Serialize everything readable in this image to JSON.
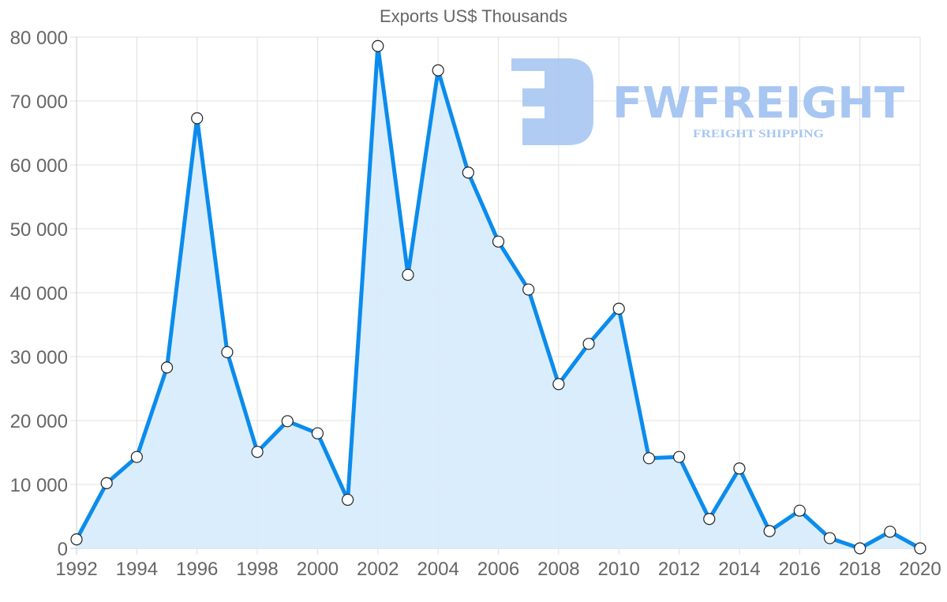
{
  "chart_data": {
    "type": "area",
    "title": "Exports US$ Thousands",
    "xlabel": "",
    "ylabel": "",
    "x": [
      1992,
      1993,
      1994,
      1995,
      1996,
      1997,
      1998,
      1999,
      2000,
      2001,
      2002,
      2003,
      2004,
      2005,
      2006,
      2007,
      2008,
      2009,
      2010,
      2011,
      2012,
      2013,
      2014,
      2015,
      2016,
      2017,
      2018,
      2019,
      2020
    ],
    "series": [
      {
        "name": "Exports US$ Thousands",
        "values": [
          1400,
          10200,
          14300,
          28300,
          67300,
          30700,
          15100,
          19900,
          18000,
          7600,
          78600,
          42800,
          74800,
          58800,
          48000,
          40500,
          25700,
          32000,
          37500,
          14100,
          14300,
          4600,
          12500,
          2700,
          5900,
          1600,
          0,
          2600,
          0
        ]
      }
    ],
    "x_tick_labels": [
      "1992",
      "1994",
      "1996",
      "1998",
      "2000",
      "2002",
      "2004",
      "2006",
      "2008",
      "2010",
      "2012",
      "2014",
      "2016",
      "2018",
      "2020"
    ],
    "y_tick_labels": [
      "0",
      "10 000",
      "20 000",
      "30 000",
      "40 000",
      "50 000",
      "60 000",
      "70 000",
      "80 000"
    ],
    "ylim": [
      0,
      80000
    ],
    "xlim": [
      1992,
      2020
    ],
    "grid": true,
    "legend": "none",
    "colors": {
      "line": "#0b8ced",
      "fill": "#d8ecfc",
      "point_fill": "#ffffff",
      "point_stroke": "#222222",
      "grid": "#e0e0e0"
    }
  },
  "watermark": {
    "brand": "FWFREIGHT",
    "tagline": "FREIGHT SHIPPING",
    "color": "#a8c6f2"
  }
}
